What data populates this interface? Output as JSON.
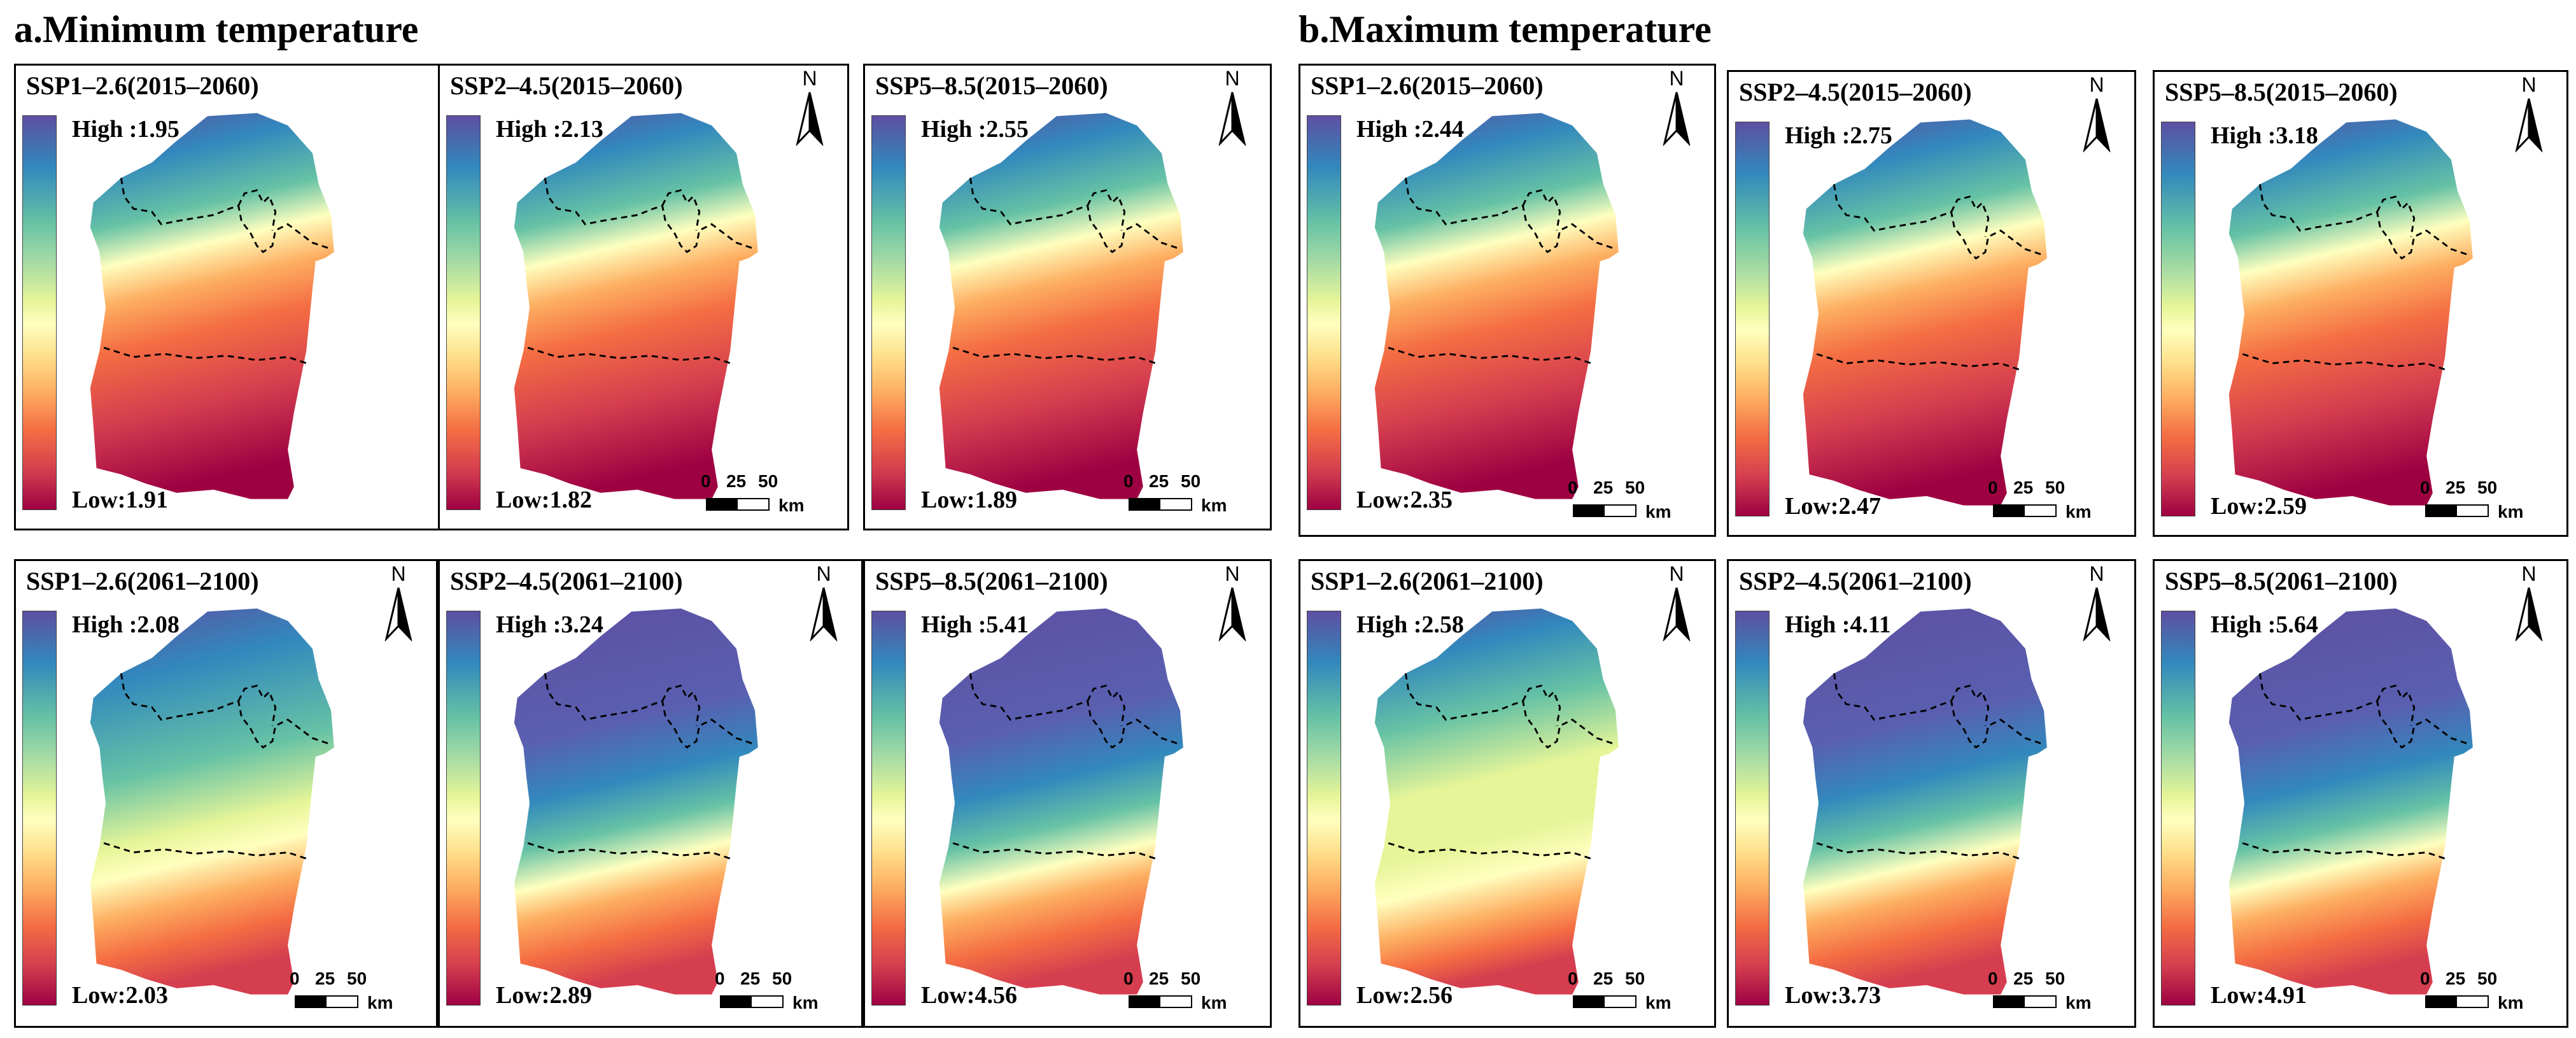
{
  "sections": [
    {
      "title": "a.Minimum temperature"
    },
    {
      "title": "b.Maximum temperature"
    }
  ],
  "north_label": "N",
  "scale": {
    "n0": "0",
    "n1": "25",
    "n2": "50",
    "unit": "km"
  },
  "panels": [
    {
      "title": "SSP1–2.6(2015–2060)",
      "high": "High :1.95",
      "low": "Low:1.91",
      "pattern": "north-warm"
    },
    {
      "title": "SSP2–4.5(2015–2060)",
      "high": "High :2.13",
      "low": "Low:1.82",
      "pattern": "north-warm"
    },
    {
      "title": "SSP5–8.5(2015–2060)",
      "high": "High :2.55",
      "low": "Low:1.89",
      "pattern": "north-warm"
    },
    {
      "title": "SSP1–2.6(2015–2060)",
      "high": "High :2.44",
      "low": "Low:2.35",
      "pattern": "north-warm"
    },
    {
      "title": "SSP2–4.5(2015–2060)",
      "high": "High :2.75",
      "low": "Low:2.47",
      "pattern": "north-warm"
    },
    {
      "title": "SSP5–8.5(2015–2060)",
      "high": "High :3.18",
      "low": "Low:2.59",
      "pattern": "north-warm"
    },
    {
      "title": "SSP1–2.6(2061–2100)",
      "high": "High :2.08",
      "low": "Low:2.03",
      "pattern": "mixed"
    },
    {
      "title": "SSP2–4.5(2061–2100)",
      "high": "High :3.24",
      "low": "Low:2.89",
      "pattern": "hot"
    },
    {
      "title": "SSP5–8.5(2061–2100)",
      "high": "High :5.41",
      "low": "Low:4.56",
      "pattern": "hot"
    },
    {
      "title": "SSP1–2.6(2061–2100)",
      "high": "High :2.58",
      "low": "Low:2.56",
      "pattern": "pale"
    },
    {
      "title": "SSP2–4.5(2061–2100)",
      "high": "High :4.11",
      "low": "Low:3.73",
      "pattern": "hot"
    },
    {
      "title": "SSP5–8.5(2061–2100)",
      "high": "High :5.64",
      "low": "Low:4.91",
      "pattern": "hot"
    }
  ],
  "colors": {
    "purple": "#5e4fa2",
    "blue": "#3288bd",
    "teal": "#66c2a5",
    "yellow": "#ffffbf",
    "orange": "#f46d43",
    "red": "#d53e4f",
    "maroon": "#9e0142"
  }
}
